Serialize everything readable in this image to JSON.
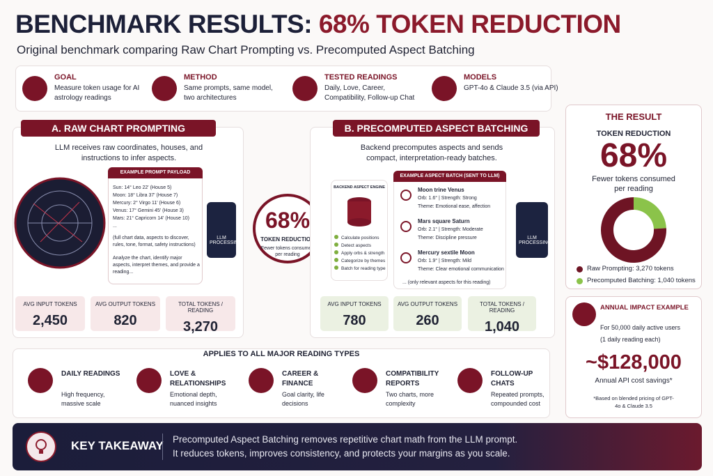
{
  "header": {
    "title_prefix": "BENCHMARK RESULTS:",
    "title_highlight": "68% TOKEN REDUCTION",
    "subtitle": "Original benchmark comparing Raw Chart Prompting vs. Precomputed Aspect Batching"
  },
  "overview": [
    {
      "label": "GOAL",
      "text": "Measure token usage for AI astrology readings"
    },
    {
      "label": "METHOD",
      "text": "Same prompts, same model, two architectures"
    },
    {
      "label": "TESTED READINGS",
      "text": "Daily, Love, Career, Compatibility, Follow-up Chat"
    },
    {
      "label": "MODELS",
      "text": "GPT-4o & Claude 3.5 (via API)"
    }
  ],
  "panel_a": {
    "title": "A. RAW CHART PROMPTING",
    "description": "LLM receives raw coordinates, houses, and instructions to infer aspects.",
    "payload_title": "EXAMPLE PROMPT PAYLOAD",
    "payload_lines": [
      "Sun: 14° Leo 22' (House 5)",
      "Moon: 18° Libra 37' (House 7)",
      "Mercury: 2° Virgo 11' (House 6)",
      "Venus: 17° Gemini 45' (House 3)",
      "Mars: 21° Capricorn 14' (House 10)",
      "..."
    ],
    "payload_note": "(full chart data, aspects to discover, rules, tone, format, safety instructions)",
    "payload_instruction": "Analyze the chart, identify major aspects, interpret themes, and provide a reading...",
    "llm_label": "LLM PROCESSING",
    "stats": [
      {
        "label": "AVG INPUT TOKENS",
        "value": "2,450"
      },
      {
        "label": "AVG OUTPUT TOKENS",
        "value": "820"
      },
      {
        "label": "TOTAL TOKENS / READING",
        "value": "3,270"
      }
    ]
  },
  "center": {
    "percent": "68%",
    "label": "TOKEN REDUCTION",
    "caption": "Fewer tokens consumed per reading"
  },
  "panel_b": {
    "title": "B. PRECOMPUTED ASPECT BATCHING",
    "description": "Backend precomputes aspects and sends compact, interpretation-ready batches.",
    "engine_title": "BACKEND ASPECT ENGINE",
    "engine_steps": [
      "Calculate positions",
      "Detect aspects",
      "Apply orbs & strength",
      "Categorize by themes",
      "Batch for reading type"
    ],
    "batch_title": "EXAMPLE ASPECT BATCH (SENT TO LLM)",
    "aspects": [
      {
        "name": "Moon trine Venus",
        "detail": "Orb: 1.6°  |  Strength: Strong",
        "theme": "Theme: Emotional ease, affection"
      },
      {
        "name": "Mars square Saturn",
        "detail": "Orb: 2.1°  |  Strength: Moderate",
        "theme": "Theme: Discipline pressure"
      },
      {
        "name": "Mercury sextile Moon",
        "detail": "Orb: 1.9°  |  Strength: Mild",
        "theme": "Theme: Clear emotional communication"
      }
    ],
    "batch_note": "... (only relevant aspects for this reading)",
    "llm_label": "LLM PROCESSING",
    "stats": [
      {
        "label": "AVG INPUT TOKENS",
        "value": "780"
      },
      {
        "label": "AVG OUTPUT TOKENS",
        "value": "260"
      },
      {
        "label": "TOTAL TOKENS / READING",
        "value": "1,040"
      }
    ]
  },
  "result": {
    "heading": "THE RESULT",
    "label": "TOKEN REDUCTION",
    "percent": "68%",
    "caption": "Fewer tokens consumed per reading",
    "donut": [
      {
        "name": "Raw Prompting: 3,270 tokens",
        "value": 3270,
        "color": "#6e1424"
      },
      {
        "name": "Precomputed Batching: 1,040 tokens",
        "value": 1040,
        "color": "#8bc34a"
      }
    ]
  },
  "impact": {
    "title": "ANNUAL IMPACT EXAMPLE",
    "line1": "For 50,000 daily active users",
    "line2": "(1 daily reading each)",
    "amount": "~$128,000",
    "caption": "Annual API cost savings*",
    "footnote": "*Based on blended pricing of GPT-4o & Claude 3.5"
  },
  "reading_types": {
    "title": "APPLIES TO ALL MAJOR READING TYPES",
    "items": [
      {
        "title": "DAILY READINGS",
        "text": "High frequency, massive scale"
      },
      {
        "title": "LOVE & RELATIONSHIPS",
        "text": "Emotional depth, nuanced insights"
      },
      {
        "title": "CAREER & FINANCE",
        "text": "Goal clarity, life decisions"
      },
      {
        "title": "COMPATIBILITY REPORTS",
        "text": "Two charts, more complexity"
      },
      {
        "title": "FOLLOW-UP CHATS",
        "text": "Repeated prompts, compounded cost"
      }
    ]
  },
  "takeaway": {
    "title": "KEY TAKEAWAY",
    "lines": [
      "Precomputed Aspect Batching removes repetitive chart math from the LLM prompt.",
      "It reduces tokens, improves consistency, and protects your margins as you scale."
    ]
  }
}
